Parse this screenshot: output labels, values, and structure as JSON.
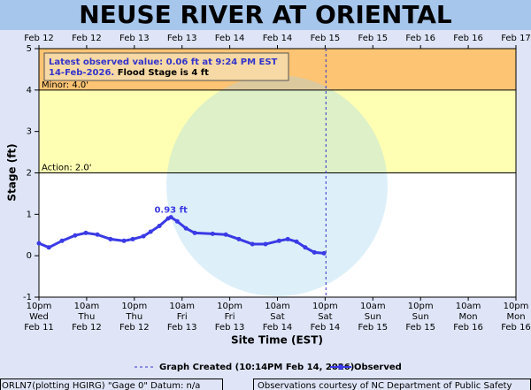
{
  "chart_data": {
    "type": "line",
    "title": "NEUSE RIVER AT ORIENTAL",
    "y_label": "Stage (ft)",
    "x_label": "Site Time (EST)",
    "xlim": [
      0,
      120
    ],
    "ylim": [
      -1,
      5
    ],
    "yticks": [
      -1,
      0,
      1,
      2,
      3,
      4,
      5
    ],
    "xticks": [
      {
        "value": 0,
        "label": [
          "10pm",
          "Wed",
          "Feb 11"
        ]
      },
      {
        "value": 12,
        "label": [
          "10am",
          "Thu",
          "Feb 12"
        ]
      },
      {
        "value": 24,
        "label": [
          "10pm",
          "Thu",
          "Feb 12"
        ]
      },
      {
        "value": 36,
        "label": [
          "10am",
          "Fri",
          "Feb 13"
        ]
      },
      {
        "value": 48,
        "label": [
          "10pm",
          "Fri",
          "Feb 13"
        ]
      },
      {
        "value": 60,
        "label": [
          "10am",
          "Sat",
          "Feb 14"
        ]
      },
      {
        "value": 72,
        "label": [
          "10pm",
          "Sat",
          "Feb 14"
        ]
      },
      {
        "value": 84,
        "label": [
          "10am",
          "Sun",
          "Feb 15"
        ]
      },
      {
        "value": 96,
        "label": [
          "10pm",
          "Sun",
          "Feb 15"
        ]
      },
      {
        "value": 108,
        "label": [
          "10am",
          "Mon",
          "Feb 16"
        ]
      },
      {
        "value": 120,
        "label": [
          "10pm",
          "Mon",
          "Feb 16"
        ]
      }
    ],
    "x2ticks": [
      {
        "value": 0,
        "label": "Feb 12"
      },
      {
        "value": 12,
        "label": "Feb 12"
      },
      {
        "value": 24,
        "label": "Feb 13"
      },
      {
        "value": 36,
        "label": "Feb 13"
      },
      {
        "value": 48,
        "label": "Feb 14"
      },
      {
        "value": 60,
        "label": "Feb 14"
      },
      {
        "value": 72,
        "label": "Feb 15"
      },
      {
        "value": 84,
        "label": "Feb 15"
      },
      {
        "value": 96,
        "label": "Feb 16"
      },
      {
        "value": 108,
        "label": "Feb 16"
      },
      {
        "value": 120,
        "label": "Feb 17"
      }
    ],
    "thresholds": [
      {
        "value": 4,
        "label": "Minor: 4.0'",
        "color": "#fdc473"
      },
      {
        "value": 2,
        "label": "Action: 2.0'",
        "color": "#ffffb3"
      }
    ],
    "created": {
      "x": 72.2,
      "label": "Graph Created (10:14PM Feb 14, 2026)",
      "color": "#3333cc"
    },
    "series": [
      {
        "name": "Observed",
        "color": "#3a3ae6",
        "x": [
          0,
          2.5,
          5.8,
          9.1,
          11.8,
          14.7,
          18,
          21.4,
          23.6,
          26.3,
          28.1,
          30.3,
          32.5,
          33.2,
          34.8,
          37,
          39.2,
          43.7,
          47,
          50.3,
          53.7,
          57,
          60.4,
          62.6,
          64.8,
          67,
          69.3,
          71.7
        ],
        "values": [
          0.3,
          0.2,
          0.36,
          0.49,
          0.55,
          0.51,
          0.4,
          0.36,
          0.4,
          0.47,
          0.58,
          0.72,
          0.9,
          0.93,
          0.83,
          0.66,
          0.55,
          0.53,
          0.51,
          0.4,
          0.28,
          0.28,
          0.36,
          0.4,
          0.34,
          0.2,
          0.08,
          0.06
        ]
      }
    ],
    "annotations": [
      {
        "x": 33.2,
        "y": 0.93,
        "text": "0.93 ft"
      }
    ],
    "info": {
      "line1": "Latest observed value: 0.06 ft at 9:24 PM EST",
      "line2a": "14-Feb-2026.",
      "line2b": "Flood Stage is 4 ft"
    },
    "footer_left": "ORLN7(plotting HGIRG) \"Gage 0\" Datum: n/a",
    "footer_right": "Observations courtesy of NC Department of Public Safety"
  }
}
